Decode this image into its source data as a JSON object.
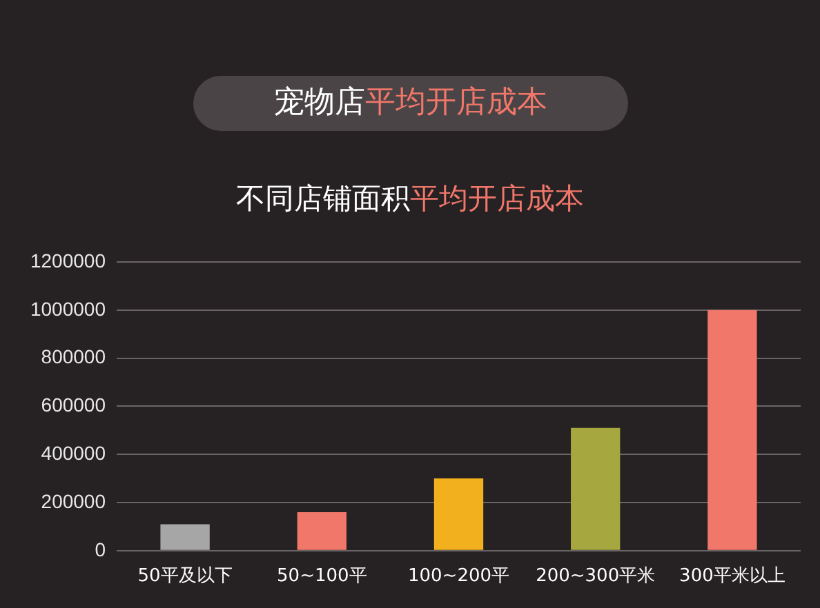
{
  "chart_data": {
    "type": "bar",
    "title": "宠物店平均开店成本",
    "subtitle": "不同店铺面积平均开店成本",
    "categories": [
      "50平及以下",
      "50~100平",
      "100~200平",
      "200~300平米",
      "300平米以上"
    ],
    "values": [
      110000,
      160000,
      300000,
      510000,
      1000000
    ],
    "colors": [
      "#a6a6a6",
      "#f0776a",
      "#f2b01e",
      "#a6a73f",
      "#f0776a"
    ],
    "ylim": [
      0,
      1200000
    ],
    "yticks": [
      0,
      200000,
      400000,
      600000,
      800000,
      1000000,
      1200000
    ],
    "grid": "y",
    "legend": false
  }
}
